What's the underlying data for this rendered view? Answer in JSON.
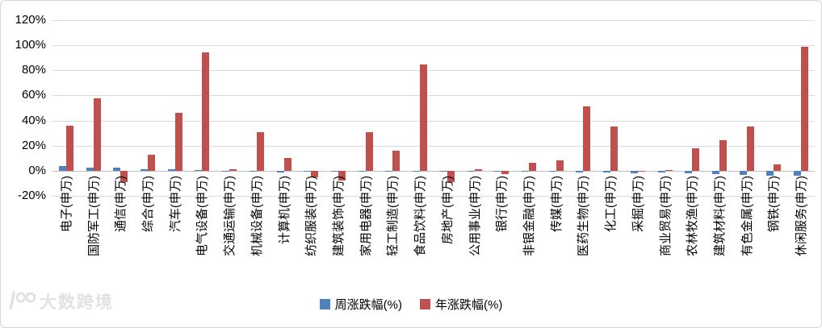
{
  "watermark": {
    "text": "大数跨境"
  },
  "legend": {
    "weekly_label": "周涨跌幅(%)",
    "yearly_label": "年涨跌幅(%)"
  },
  "chart_data": {
    "type": "bar",
    "title": "",
    "xlabel": "",
    "ylabel": "",
    "grid": true,
    "legend_position": "bottom",
    "ylim": [
      -20,
      120
    ],
    "ytick_step": 20,
    "ytick_labels": [
      "120%",
      "100%",
      "80%",
      "60%",
      "40%",
      "20%",
      "0%",
      "-20%"
    ],
    "categories": [
      "电子(申万)",
      "国防军工(申万)",
      "通信(申万)",
      "综合(申万)",
      "汽车(申万)",
      "电气设备(申万)",
      "交通运输(申万)",
      "机械设备(申万)",
      "计算机(申万)",
      "纺织服装(申万)",
      "建筑装饰(申万)",
      "家用电器(申万)",
      "轻工制造(申万)",
      "食品饮料(申万)",
      "房地产(申万)",
      "公用事业(申万)",
      "银行(申万)",
      "非银金融(申万)",
      "传媒(申万)",
      "医药生物(申万)",
      "化工(申万)",
      "采掘(申万)",
      "商业贸易(申万)",
      "农林牧渔(申万)",
      "建筑材料(申万)",
      "有色金属(申万)",
      "钢铁(申万)",
      "休闲服务(申万)"
    ],
    "series": [
      {
        "name": "周涨跌幅(%)",
        "color": "#4F81BD",
        "values": [
          3.5,
          2.5,
          2.5,
          1.5,
          1,
          0.5,
          -0.3,
          -0.5,
          -1.5,
          -1,
          -1,
          -1,
          -1,
          -1,
          -1,
          -0.5,
          -0.5,
          -1,
          -1,
          -1.5,
          -1.5,
          -2,
          -1.5,
          -2,
          -2.5,
          -3,
          -4,
          -4
        ]
      },
      {
        "name": "年涨跌幅(%)",
        "color": "#C0504D",
        "values": [
          36,
          58,
          -9,
          13,
          46,
          94,
          1,
          31,
          10,
          -5.5,
          -8,
          31,
          16,
          85,
          -9,
          1.5,
          -2.5,
          6.5,
          8,
          51,
          35,
          -1,
          0.3,
          18,
          24,
          35,
          5,
          99
        ]
      }
    ]
  }
}
